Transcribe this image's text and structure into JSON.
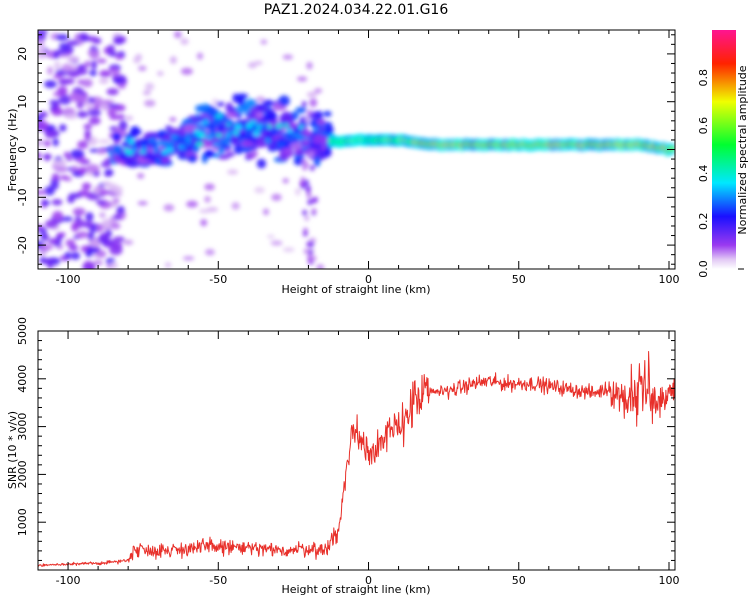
{
  "figure": {
    "title": "PAZ1.2024.034.22.01.G16"
  },
  "colors": {
    "snr_line": "#e8302a",
    "colorbar_stops": [
      "#ffffff",
      "#8a2be2",
      "#0000ff",
      "#00ffff",
      "#00ff00",
      "#ffff00",
      "#ff0000",
      "#ff1493"
    ]
  },
  "chart_data": [
    {
      "type": "heatmap",
      "title": "",
      "xlabel": "Height of straight line (km)",
      "ylabel": "Frequency (Hz)",
      "xlim": [
        -110,
        102
      ],
      "ylim": [
        -25,
        25
      ],
      "xticks": [
        -100,
        -50,
        0,
        50,
        100
      ],
      "yticks": [
        -20,
        -10,
        0,
        10,
        20
      ],
      "colorbar": {
        "label": "Normalized spectral amplitude",
        "range": [
          0.0,
          1.0
        ],
        "ticks": [
          0.0,
          0.2,
          0.4,
          0.6,
          0.8
        ]
      },
      "features": [
        {
          "region": "x -110 to -85",
          "description": "scattered weak noise across all frequencies",
          "amplitude": [
            0.05,
            0.25
          ]
        },
        {
          "region": "x -85 to -15",
          "description": "patchy energy between -10 and 10 Hz",
          "amplitude": [
            0.15,
            0.45
          ]
        },
        {
          "region": "x -10 to 102",
          "description": "narrow band near 0 to 2 Hz",
          "amplitude": [
            0.4,
            0.95
          ]
        }
      ],
      "band_centers": {
        "x": [
          -80,
          -70,
          -60,
          -50,
          -40,
          -30,
          -20,
          -10,
          0,
          10,
          20,
          30,
          40,
          50,
          60,
          70,
          80,
          90,
          100
        ],
        "freq": [
          0,
          0,
          2,
          4,
          5,
          4,
          3,
          1.5,
          2,
          2,
          1,
          1,
          1,
          1,
          1,
          1,
          1,
          1,
          0
        ]
      }
    },
    {
      "type": "line",
      "title": "",
      "xlabel": "Height of straight line (km)",
      "ylabel": "SNR (10 * v/v)",
      "xlim": [
        -110,
        102
      ],
      "ylim": [
        0,
        5000
      ],
      "xticks": [
        -100,
        -50,
        0,
        50,
        100
      ],
      "yticks": [
        1000,
        2000,
        3000,
        4000,
        5000
      ],
      "series": [
        {
          "x": [
            -110,
            -100,
            -90,
            -80,
            -78,
            -70,
            -60,
            -50,
            -40,
            -30,
            -20,
            -15,
            -10,
            -8,
            -5,
            0,
            5,
            10,
            15,
            20,
            25,
            30,
            35,
            40,
            45,
            50,
            55,
            60,
            65,
            70,
            75,
            80,
            85,
            88,
            90,
            93,
            95,
            100,
            102
          ],
          "y": [
            100,
            120,
            140,
            200,
            450,
            400,
            450,
            500,
            450,
            400,
            450,
            400,
            800,
            1800,
            3000,
            2500,
            2700,
            3000,
            3500,
            3700,
            3750,
            3800,
            3900,
            3950,
            3900,
            3900,
            3900,
            3850,
            3800,
            3750,
            3700,
            3800,
            3600,
            3500,
            3900,
            3600,
            3400,
            3700,
            3700
          ]
        }
      ]
    }
  ]
}
